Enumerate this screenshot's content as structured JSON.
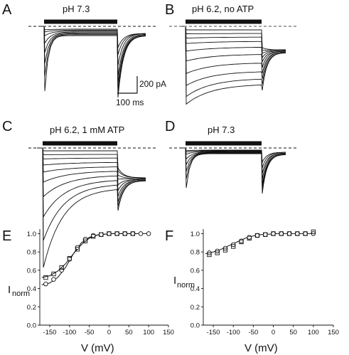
{
  "figure": {
    "panel_letters": {
      "A": "A",
      "B": "B",
      "C": "C",
      "D": "D",
      "E": "E",
      "F": "F"
    },
    "conditions": {
      "A": "pH 7.3",
      "B": "pH 6.2, no ATP",
      "C": "pH 6.2, 1 mM ATP",
      "D": "pH 7.3"
    },
    "scale_bar": {
      "current": "200 pA",
      "time": "100 ms"
    }
  },
  "chart_data": [
    {
      "panel": "E",
      "type": "scatter",
      "xlabel": "V (mV)",
      "ylabel": "I",
      "ylabel_sub": "norm",
      "xlim": [
        -175,
        150
      ],
      "ylim": [
        0.0,
        1.05
      ],
      "xticks": [
        "-150",
        "-100",
        "-50",
        "0",
        "50",
        "100",
        "150"
      ],
      "yticks": [
        "0.0",
        "0.2",
        "0.4",
        "0.6",
        "0.8",
        "1.0"
      ],
      "series": [
        {
          "marker": "circle",
          "x": [
            -160,
            -140,
            -120,
            -100,
            -80,
            -60,
            -40,
            -20,
            0,
            20,
            40,
            60,
            80,
            100
          ],
          "y": [
            0.45,
            0.5,
            0.6,
            0.72,
            0.85,
            0.94,
            0.98,
            0.99,
            1.0,
            1.0,
            1.0,
            1.0,
            1.0,
            1.0
          ]
        },
        {
          "marker": "square",
          "x": [
            -160,
            -140,
            -120,
            -100,
            -80,
            -60,
            -40,
            -20,
            0,
            20,
            40,
            60
          ],
          "y": [
            0.52,
            0.56,
            0.63,
            0.73,
            0.83,
            0.92,
            0.97,
            0.99,
            1.0,
            1.0,
            1.0,
            1.0
          ]
        }
      ],
      "fits": [
        {
          "x": [
            -170,
            -150,
            -130,
            -110,
            -90,
            -70,
            -50,
            -30,
            -10,
            10,
            30,
            50,
            70,
            90,
            100
          ],
          "y": [
            0.44,
            0.46,
            0.52,
            0.63,
            0.78,
            0.9,
            0.96,
            0.985,
            0.995,
            1.0,
            1.0,
            1.0,
            1.0,
            1.0,
            1.0
          ]
        },
        {
          "x": [
            -170,
            -150,
            -130,
            -110,
            -90,
            -70,
            -50,
            -30,
            -10,
            10,
            30,
            50,
            70
          ],
          "y": [
            0.52,
            0.54,
            0.59,
            0.67,
            0.78,
            0.88,
            0.95,
            0.985,
            0.995,
            1.0,
            1.0,
            1.0,
            1.0
          ]
        }
      ]
    },
    {
      "panel": "F",
      "type": "scatter",
      "xlabel": "V (mV)",
      "ylabel": "I",
      "ylabel_sub": "norm",
      "xlim": [
        -175,
        150
      ],
      "ylim": [
        0.0,
        1.05
      ],
      "xticks": [
        "-150",
        "-100",
        "-50",
        "0",
        "50",
        "100",
        "150"
      ],
      "yticks": [
        "0.0",
        "0.2",
        "0.4",
        "0.6",
        "0.8",
        "1.0"
      ],
      "series": [
        {
          "marker": "circle",
          "x": [
            -160,
            -140,
            -120,
            -100,
            -80,
            -60,
            -40,
            -20,
            0,
            20,
            40,
            60,
            80,
            100
          ],
          "y": [
            0.79,
            0.81,
            0.84,
            0.88,
            0.92,
            0.96,
            0.98,
            0.99,
            1.0,
            1.0,
            1.0,
            1.0,
            1.0,
            1.0
          ]
        },
        {
          "marker": "square",
          "x": [
            -160,
            -140,
            -120,
            -100,
            -80,
            -60,
            -40,
            -20,
            0,
            20,
            40,
            60,
            80,
            100
          ],
          "y": [
            0.77,
            0.79,
            0.82,
            0.86,
            0.91,
            0.95,
            0.98,
            0.99,
            1.0,
            1.0,
            1.0,
            1.0,
            1.0,
            1.02
          ]
        }
      ],
      "fits": [
        {
          "x": [
            -170,
            -150,
            -130,
            -110,
            -90,
            -70,
            -50,
            -30,
            -10,
            10,
            30,
            50,
            70,
            90,
            100
          ],
          "y": [
            0.78,
            0.8,
            0.83,
            0.87,
            0.91,
            0.95,
            0.975,
            0.99,
            0.995,
            1.0,
            1.0,
            1.0,
            1.0,
            1.0,
            1.0
          ]
        }
      ]
    }
  ]
}
